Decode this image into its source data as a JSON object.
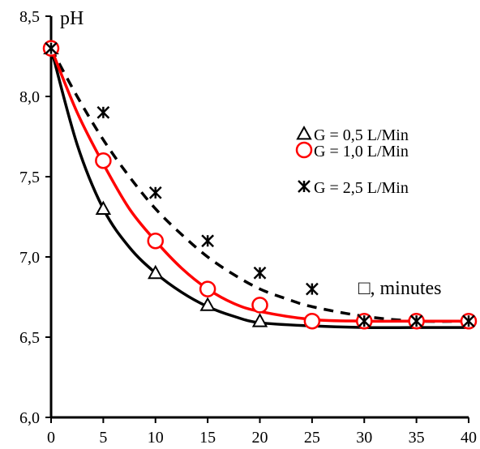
{
  "chart_data": {
    "type": "line",
    "title": "",
    "ylabel": "pH",
    "xlabel": "□, minutes",
    "x": [
      0,
      5,
      10,
      15,
      20,
      25,
      30,
      35,
      40
    ],
    "xticks": [
      "0",
      "5",
      "10",
      "15",
      "20",
      "25",
      "30",
      "35",
      "40"
    ],
    "yticks": [
      "6,0",
      "6,5",
      "7,0",
      "7,5",
      "8,0",
      "8,5"
    ],
    "xlim": [
      0,
      40
    ],
    "ylim": [
      6.0,
      8.5
    ],
    "grid": false,
    "legend_position": "right",
    "series": [
      {
        "name": "G = 0,5 L/Min",
        "marker": "triangle",
        "line_color": "#000000",
        "line_style": "solid",
        "marker_color": "#000000",
        "points": [
          {
            "x": 0,
            "y": 8.3
          },
          {
            "x": 5,
            "y": 7.3
          },
          {
            "x": 10,
            "y": 6.9
          },
          {
            "x": 15,
            "y": 6.7
          },
          {
            "x": 20,
            "y": 6.6
          }
        ],
        "fit_curve": [
          {
            "x": 0,
            "y": 8.3
          },
          {
            "x": 2.5,
            "y": 7.7
          },
          {
            "x": 5,
            "y": 7.3
          },
          {
            "x": 7.5,
            "y": 7.06
          },
          {
            "x": 10,
            "y": 6.9
          },
          {
            "x": 12.5,
            "y": 6.78
          },
          {
            "x": 15,
            "y": 6.69
          },
          {
            "x": 17.5,
            "y": 6.63
          },
          {
            "x": 20,
            "y": 6.59
          },
          {
            "x": 25,
            "y": 6.57
          },
          {
            "x": 30,
            "y": 6.56
          },
          {
            "x": 35,
            "y": 6.56
          },
          {
            "x": 40,
            "y": 6.56
          }
        ]
      },
      {
        "name": "G = 1,0 L/Min",
        "marker": "circle",
        "line_color": "#ff0000",
        "line_style": "solid",
        "marker_color": "#ff0000",
        "points": [
          {
            "x": 0,
            "y": 8.3
          },
          {
            "x": 5,
            "y": 7.6
          },
          {
            "x": 10,
            "y": 7.1
          },
          {
            "x": 15,
            "y": 6.8
          },
          {
            "x": 20,
            "y": 6.7
          },
          {
            "x": 25,
            "y": 6.6
          },
          {
            "x": 30,
            "y": 6.6
          },
          {
            "x": 35,
            "y": 6.6
          },
          {
            "x": 40,
            "y": 6.6
          }
        ],
        "fit_curve": [
          {
            "x": 0,
            "y": 8.3
          },
          {
            "x": 2.5,
            "y": 7.9
          },
          {
            "x": 5,
            "y": 7.58
          },
          {
            "x": 7.5,
            "y": 7.3
          },
          {
            "x": 10,
            "y": 7.1
          },
          {
            "x": 12.5,
            "y": 6.93
          },
          {
            "x": 15,
            "y": 6.8
          },
          {
            "x": 17.5,
            "y": 6.71
          },
          {
            "x": 20,
            "y": 6.66
          },
          {
            "x": 25,
            "y": 6.61
          },
          {
            "x": 30,
            "y": 6.6
          },
          {
            "x": 35,
            "y": 6.6
          },
          {
            "x": 40,
            "y": 6.6
          }
        ]
      },
      {
        "name": "G = 2,5 L/Min",
        "marker": "asterisk",
        "line_color": "#000000",
        "line_style": "dashed",
        "marker_color": "#000000",
        "points": [
          {
            "x": 0,
            "y": 8.3
          },
          {
            "x": 5,
            "y": 7.9
          },
          {
            "x": 10,
            "y": 7.4
          },
          {
            "x": 15,
            "y": 7.1
          },
          {
            "x": 20,
            "y": 6.9
          },
          {
            "x": 25,
            "y": 6.8
          },
          {
            "x": 30,
            "y": 6.6
          },
          {
            "x": 35,
            "y": 6.6
          },
          {
            "x": 40,
            "y": 6.6
          }
        ],
        "fit_curve": [
          {
            "x": 0,
            "y": 8.3
          },
          {
            "x": 2.5,
            "y": 8.0
          },
          {
            "x": 5,
            "y": 7.73
          },
          {
            "x": 7.5,
            "y": 7.5
          },
          {
            "x": 10,
            "y": 7.3
          },
          {
            "x": 12.5,
            "y": 7.14
          },
          {
            "x": 15,
            "y": 7.0
          },
          {
            "x": 17.5,
            "y": 6.89
          },
          {
            "x": 20,
            "y": 6.8
          },
          {
            "x": 22.5,
            "y": 6.74
          },
          {
            "x": 25,
            "y": 6.69
          },
          {
            "x": 30,
            "y": 6.63
          },
          {
            "x": 35,
            "y": 6.6
          },
          {
            "x": 40,
            "y": 6.6
          }
        ]
      }
    ]
  }
}
